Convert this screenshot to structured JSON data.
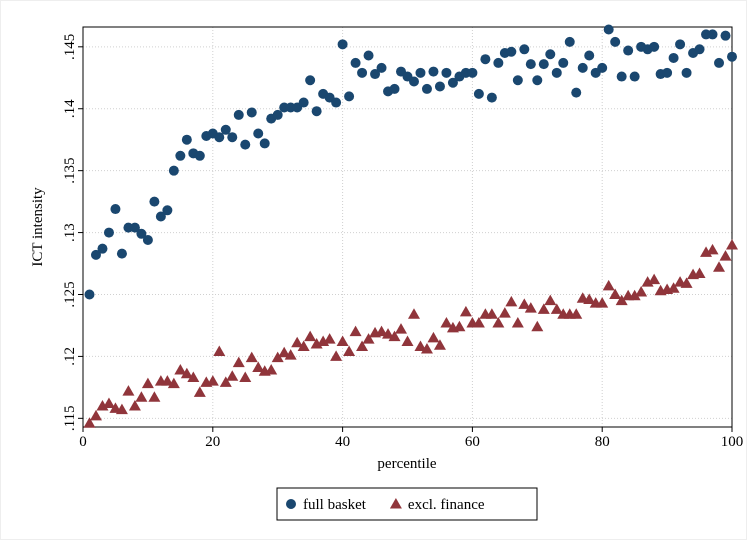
{
  "chart_data": {
    "type": "scatter",
    "xlabel": "percentile",
    "ylabel": "ICT intensity",
    "x": [
      1,
      2,
      3,
      4,
      5,
      6,
      7,
      8,
      9,
      10,
      11,
      12,
      13,
      14,
      15,
      16,
      17,
      18,
      19,
      20,
      21,
      22,
      23,
      24,
      25,
      26,
      27,
      28,
      29,
      30,
      31,
      32,
      33,
      34,
      35,
      36,
      37,
      38,
      39,
      40,
      41,
      42,
      43,
      44,
      45,
      46,
      47,
      48,
      49,
      50,
      51,
      52,
      53,
      54,
      55,
      56,
      57,
      58,
      59,
      60,
      61,
      62,
      63,
      64,
      65,
      66,
      67,
      68,
      69,
      70,
      71,
      72,
      73,
      74,
      75,
      76,
      77,
      78,
      79,
      80,
      81,
      82,
      83,
      84,
      85,
      86,
      87,
      88,
      89,
      90,
      91,
      92,
      93,
      94,
      95,
      96,
      97,
      98,
      99,
      100
    ],
    "series": [
      {
        "name": "full basket",
        "color": "#1a476f",
        "marker": "circle",
        "values": [
          0.125,
          0.1282,
          0.1287,
          0.13,
          0.1319,
          0.1283,
          0.1304,
          0.1304,
          0.1299,
          0.1294,
          0.1325,
          0.1313,
          0.1318,
          0.135,
          0.1362,
          0.1375,
          0.1364,
          0.1362,
          0.1378,
          0.138,
          0.1377,
          0.1383,
          0.1377,
          0.1395,
          0.1371,
          0.1397,
          0.138,
          0.1372,
          0.1392,
          0.1395,
          0.1401,
          0.1401,
          0.1401,
          0.1405,
          0.1423,
          0.1398,
          0.1412,
          0.1409,
          0.1405,
          0.1452,
          0.141,
          0.1437,
          0.1429,
          0.1443,
          0.1428,
          0.1433,
          0.1414,
          0.1416,
          0.143,
          0.1426,
          0.1422,
          0.1429,
          0.1416,
          0.143,
          0.1418,
          0.1429,
          0.1421,
          0.1426,
          0.1429,
          0.1429,
          0.1412,
          0.144,
          0.1409,
          0.1437,
          0.1445,
          0.1446,
          0.1423,
          0.1448,
          0.1436,
          0.1423,
          0.1436,
          0.1444,
          0.1429,
          0.1437,
          0.1454,
          0.1413,
          0.1433,
          0.1443,
          0.1429,
          0.1433,
          0.1464,
          0.1454,
          0.1426,
          0.1447,
          0.1426,
          0.145,
          0.1448,
          0.145,
          0.1428,
          0.1429,
          0.1441,
          0.1452,
          0.1429,
          0.1445,
          0.1448,
          0.146,
          0.146,
          0.1437,
          0.1459,
          0.1442
        ]
      },
      {
        "name": "excl. finance",
        "color": "#90353b",
        "marker": "triangle",
        "values": [
          0.1146,
          0.1152,
          0.116,
          0.1162,
          0.1158,
          0.1157,
          0.1172,
          0.116,
          0.1167,
          0.1178,
          0.1167,
          0.118,
          0.118,
          0.1178,
          0.1189,
          0.1186,
          0.1183,
          0.1171,
          0.1179,
          0.118,
          0.1204,
          0.1179,
          0.1184,
          0.1195,
          0.1183,
          0.1199,
          0.1191,
          0.1188,
          0.1189,
          0.1199,
          0.1203,
          0.1201,
          0.1211,
          0.1208,
          0.1216,
          0.121,
          0.1212,
          0.1214,
          0.12,
          0.1212,
          0.1204,
          0.122,
          0.1208,
          0.1214,
          0.1219,
          0.122,
          0.1218,
          0.1216,
          0.1222,
          0.1212,
          0.1234,
          0.1208,
          0.1206,
          0.1215,
          0.1209,
          0.1227,
          0.1223,
          0.1224,
          0.1236,
          0.1227,
          0.1227,
          0.1234,
          0.1234,
          0.1227,
          0.1235,
          0.1244,
          0.1227,
          0.1242,
          0.1239,
          0.1224,
          0.1238,
          0.1245,
          0.1238,
          0.1234,
          0.1234,
          0.1234,
          0.1247,
          0.1246,
          0.1243,
          0.1243,
          0.1257,
          0.125,
          0.1245,
          0.1249,
          0.1249,
          0.1252,
          0.126,
          0.1262,
          0.1253,
          0.1254,
          0.1255,
          0.126,
          0.1259,
          0.1266,
          0.1267,
          0.1284,
          0.1286,
          0.1272,
          0.1281,
          0.129
        ]
      }
    ],
    "xlim": [
      0,
      100
    ],
    "xticks": [
      0,
      20,
      40,
      60,
      80,
      100
    ],
    "ylim": [
      0.1143,
      0.1466
    ],
    "yticks": [
      {
        "value": 0.115,
        "label": ".115"
      },
      {
        "value": 0.12,
        "label": ".12"
      },
      {
        "value": 0.125,
        "label": ".125"
      },
      {
        "value": 0.13,
        "label": ".13"
      },
      {
        "value": 0.135,
        "label": ".135"
      },
      {
        "value": 0.14,
        "label": ".14"
      },
      {
        "value": 0.145,
        "label": ".145"
      }
    ],
    "grid": true,
    "legend": "bottom"
  }
}
